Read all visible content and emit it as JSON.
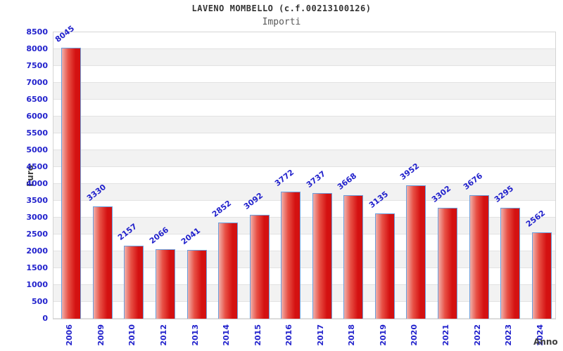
{
  "chart_data": {
    "type": "bar",
    "title": "LAVENO MOMBELLO (c.f.00213100126)",
    "subtitle": "Importi",
    "xlabel": "Anno",
    "ylabel": "Euro",
    "categories": [
      "2006",
      "2009",
      "2010",
      "2012",
      "2013",
      "2014",
      "2015",
      "2016",
      "2017",
      "2018",
      "2019",
      "2020",
      "2021",
      "2022",
      "2023",
      "2024"
    ],
    "values": [
      8045,
      3330,
      2157,
      2066,
      2041,
      2852,
      3092,
      3772,
      3737,
      3668,
      3135,
      3952,
      3302,
      3676,
      3295,
      2562
    ],
    "ylim": [
      0,
      8500
    ],
    "ytick_step": 500,
    "legend": "none",
    "grid": "horizontal-bands",
    "colors": {
      "bar_fill_light": "#f0b0aa",
      "bar_fill_mid": "#e85045",
      "bar_fill_dark": "#d41111",
      "bar_border": "#6b9fdd",
      "tick_text": "#2222cc",
      "title_text": "#333333",
      "subtitle_text": "#595959",
      "axis_title_text": "#3f3f3f",
      "band_alt": "#f2f2f2",
      "band_main": "#ffffff",
      "gridline": "#e2e2e2"
    }
  }
}
